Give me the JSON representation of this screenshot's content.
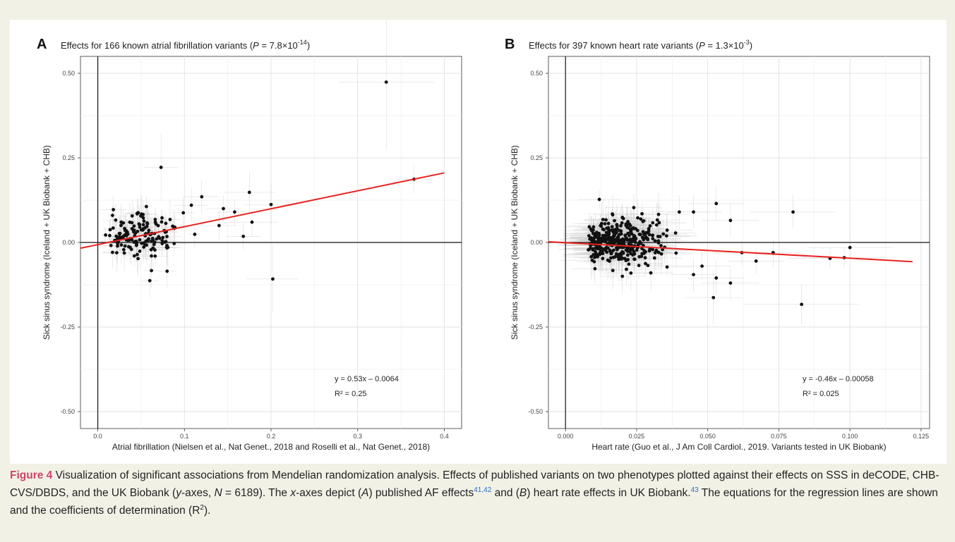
{
  "figure": {
    "caption": {
      "label": "Figure 4",
      "text_1": "Visualization of significant associations from Mendelian randomization analysis. Effects of published variants on two phenotypes plotted against their effects on SSS in deCODE, CHB-CVS/DBDS, and the UK Biobank (",
      "y_italic": "y",
      "text_2": "-axes, ",
      "n_italic": "N",
      "text_3": " = 6189). The ",
      "x_italic": "x",
      "text_4": "-axes depict (",
      "a_italic": "A",
      "text_5": ") published AF effects",
      "ref_1": "41,42",
      "text_6": " and (",
      "b_italic": "B",
      "text_7": ") heart rate effects in UK Biobank.",
      "ref_2": "43",
      "text_8": " The equations for the regression lines are shown and the coefficients of determination (R",
      "r2_sup": "2",
      "text_9": ")."
    }
  },
  "chart_data": [
    {
      "type": "scatter",
      "panel_label": "A",
      "title_prefix": "Effects for 166 known atrial fibrillation variants (",
      "title_p": "P",
      "title_mid": " = 7.8×10",
      "title_exp": "-14",
      "title_suffix": ")",
      "xlabel": "Atrial fibrillation (Nielsen et al., Nat Genet., 2018 and Roselli et al., Nat Genet., 2018)",
      "ylabel": "Sick sinus syndrome (Iceland + UK Biobank + CHB)",
      "xlim": [
        -0.02,
        0.42
      ],
      "ylim": [
        -0.55,
        0.55
      ],
      "xticks": [
        0.0,
        0.1,
        0.2,
        0.3,
        0.4
      ],
      "xtick_labels": [
        "0.0",
        "0.1",
        "0.2",
        "0.3",
        "0.4"
      ],
      "yticks": [
        -0.5,
        -0.25,
        0.0,
        0.25,
        0.5
      ],
      "ytick_labels": [
        "-0.50",
        "-0.25",
        "0.00",
        "0.25",
        "0.50"
      ],
      "grid": true,
      "regression": {
        "slope": 0.53,
        "intercept": -0.0064,
        "color": "#e8231f"
      },
      "equation": "y = 0.53x – 0.0064",
      "r2_text": "R² = 0.25",
      "n_points": 166,
      "highlight_points": [
        {
          "x": 0.333,
          "y": 0.474,
          "xerr": 0.055,
          "yerr": 0.2
        },
        {
          "x": 0.365,
          "y": 0.187,
          "xerr": 0.02,
          "yerr": 0.04
        },
        {
          "x": 0.073,
          "y": 0.222,
          "xerr": 0.02,
          "yerr": 0.1
        },
        {
          "x": 0.202,
          "y": -0.108,
          "xerr": 0.03,
          "yerr": 0.1
        },
        {
          "x": 0.175,
          "y": 0.148,
          "xerr": 0.03,
          "yerr": 0.06
        },
        {
          "x": 0.2,
          "y": 0.112,
          "xerr": 0.03,
          "yerr": 0.06
        },
        {
          "x": 0.06,
          "y": -0.113,
          "xerr": 0.01,
          "yerr": 0.05
        },
        {
          "x": 0.08,
          "y": -0.085,
          "xerr": 0.01,
          "yerr": 0.05
        },
        {
          "x": 0.009,
          "y": 0.022,
          "xerr": 0.005,
          "yerr": 0.02
        },
        {
          "x": 0.017,
          "y": 0.08,
          "xerr": 0.005,
          "yerr": 0.03
        },
        {
          "x": 0.178,
          "y": 0.06,
          "xerr": 0.03,
          "yerr": 0.04
        },
        {
          "x": 0.168,
          "y": 0.018,
          "xerr": 0.02,
          "yerr": 0.04
        },
        {
          "x": 0.12,
          "y": 0.135,
          "xerr": 0.02,
          "yerr": 0.05
        },
        {
          "x": 0.108,
          "y": 0.11,
          "xerr": 0.02,
          "yerr": 0.05
        },
        {
          "x": 0.14,
          "y": 0.05,
          "xerr": 0.02,
          "yerr": 0.04
        },
        {
          "x": 0.145,
          "y": 0.1,
          "xerr": 0.02,
          "yerr": 0.04
        },
        {
          "x": 0.158,
          "y": 0.09,
          "xerr": 0.02,
          "yerr": 0.04
        }
      ],
      "cluster": {
        "count": 149,
        "x_center": 0.05,
        "x_sd": 0.022,
        "x_min": 0.012,
        "x_max": 0.13,
        "y_center": 0.025,
        "y_sd": 0.032,
        "xerr": 0.012,
        "yerr": 0.04
      }
    },
    {
      "type": "scatter",
      "panel_label": "B",
      "title_prefix": "Effects for 397 known heart rate variants (",
      "title_p": "P",
      "title_mid": " = 1.3×10",
      "title_exp": "-3",
      "title_suffix": ")",
      "xlabel": "Heart rate (Guo et al., J Am Coll Cardiol., 2019. Variants tested in UK Biobank)",
      "ylabel": "Sick sinus syndrome (Iceland + UK Biobank + CHB)",
      "xlim": [
        -0.006,
        0.128
      ],
      "ylim": [
        -0.55,
        0.55
      ],
      "xticks": [
        0.0,
        0.025,
        0.05,
        0.075,
        0.1,
        0.125
      ],
      "xtick_labels": [
        "0.000",
        "0.025",
        "0.050",
        "0.075",
        "0.100",
        "0.125"
      ],
      "yticks": [
        -0.5,
        -0.25,
        0.0,
        0.25,
        0.5
      ],
      "ytick_labels": [
        "-0.50",
        "-0.25",
        "0.00",
        "0.25",
        "0.50"
      ],
      "grid": true,
      "regression": {
        "slope": -0.46,
        "intercept": -0.00058,
        "x_end": 0.122,
        "color": "#e8231f"
      },
      "equation": "y = -0.46x – 0.00058",
      "r2_text": "R² = 0.025",
      "n_points": 397,
      "highlight_points": [
        {
          "x": 0.083,
          "y": -0.183,
          "xerr": 0.02,
          "yerr": 0.06
        },
        {
          "x": 0.08,
          "y": 0.09,
          "xerr": 0.015,
          "yerr": 0.05
        },
        {
          "x": 0.052,
          "y": -0.163,
          "xerr": 0.01,
          "yerr": 0.08
        },
        {
          "x": 0.1,
          "y": -0.015,
          "xerr": 0.015,
          "yerr": 0.03
        },
        {
          "x": 0.098,
          "y": -0.045,
          "xerr": 0.015,
          "yerr": 0.03
        },
        {
          "x": 0.093,
          "y": -0.047,
          "xerr": 0.015,
          "yerr": 0.03
        },
        {
          "x": 0.053,
          "y": 0.115,
          "xerr": 0.01,
          "yerr": 0.05
        },
        {
          "x": 0.058,
          "y": 0.065,
          "xerr": 0.01,
          "yerr": 0.05
        },
        {
          "x": 0.067,
          "y": -0.055,
          "xerr": 0.01,
          "yerr": 0.04
        },
        {
          "x": 0.073,
          "y": -0.03,
          "xerr": 0.01,
          "yerr": 0.04
        },
        {
          "x": 0.058,
          "y": -0.12,
          "xerr": 0.01,
          "yerr": 0.05
        },
        {
          "x": 0.053,
          "y": -0.105,
          "xerr": 0.01,
          "yerr": 0.05
        },
        {
          "x": 0.045,
          "y": 0.09,
          "xerr": 0.01,
          "yerr": 0.05
        },
        {
          "x": 0.04,
          "y": 0.09,
          "xerr": 0.01,
          "yerr": 0.05
        },
        {
          "x": 0.062,
          "y": -0.03,
          "xerr": 0.01,
          "yerr": 0.04
        },
        {
          "x": 0.048,
          "y": -0.07,
          "xerr": 0.01,
          "yerr": 0.04
        },
        {
          "x": 0.024,
          "y": 0.103,
          "xerr": 0.01,
          "yerr": 0.04
        },
        {
          "x": 0.02,
          "y": -0.1,
          "xerr": 0.008,
          "yerr": 0.05
        },
        {
          "x": 0.03,
          "y": -0.09,
          "xerr": 0.008,
          "yerr": 0.05
        },
        {
          "x": 0.045,
          "y": -0.095,
          "xerr": 0.008,
          "yerr": 0.05
        }
      ],
      "cluster": {
        "count": 377,
        "x_center": 0.018,
        "x_sd": 0.009,
        "x_min": 0.008,
        "x_max": 0.05,
        "y_center": 0.0,
        "y_sd": 0.035,
        "xerr": 0.008,
        "yerr": 0.045
      }
    }
  ]
}
